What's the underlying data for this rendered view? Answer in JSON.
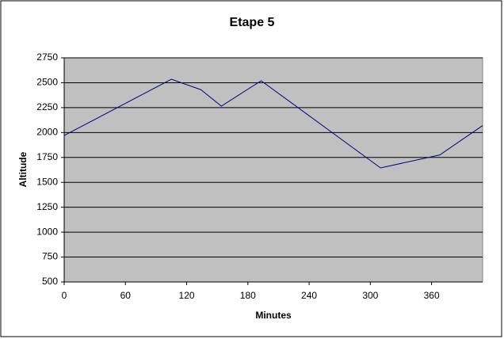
{
  "chart_data": {
    "type": "line",
    "title": "Etape 5",
    "x_label": "Minutes",
    "y_label": "Altitude",
    "x": [
      0,
      105,
      134,
      154,
      193,
      310,
      368,
      410
    ],
    "series": [
      {
        "color": "#000080",
        "values": [
          1970,
          2535,
          2430,
          2265,
          2520,
          1645,
          1775,
          2070
        ]
      }
    ],
    "xlim": [
      0,
      410
    ],
    "xticks": [
      0,
      60,
      120,
      180,
      240,
      300,
      360
    ],
    "ylim": [
      500,
      2750
    ],
    "yticks": [
      500,
      750,
      1000,
      1250,
      1500,
      1750,
      2000,
      2250,
      2500,
      2750
    ],
    "grid": true,
    "plot_background": "#c0c0c0"
  }
}
